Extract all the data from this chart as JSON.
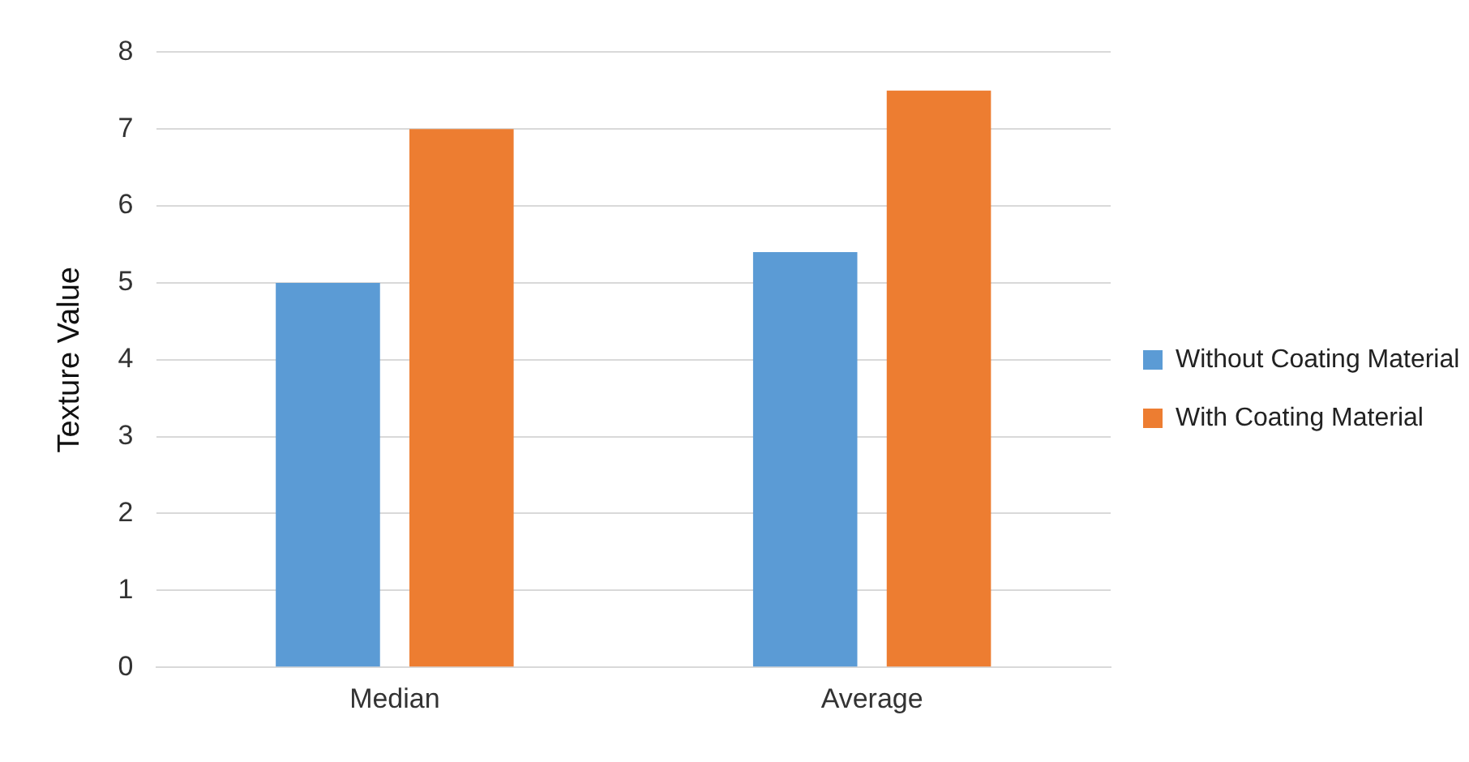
{
  "chart_data": {
    "type": "bar",
    "ylabel": "Texture Value",
    "categories": [
      "Median",
      "Average"
    ],
    "series": [
      {
        "name": "Without Coating Material",
        "color": "#5b9bd5",
        "values": [
          5,
          5.4
        ]
      },
      {
        "name": "With Coating Material",
        "color": "#ed7d31",
        "values": [
          7,
          7.5
        ]
      }
    ],
    "ylim": [
      0,
      8
    ],
    "yticks": [
      0,
      1,
      2,
      3,
      4,
      5,
      6,
      7,
      8
    ],
    "grid": "y",
    "legend": "right"
  }
}
